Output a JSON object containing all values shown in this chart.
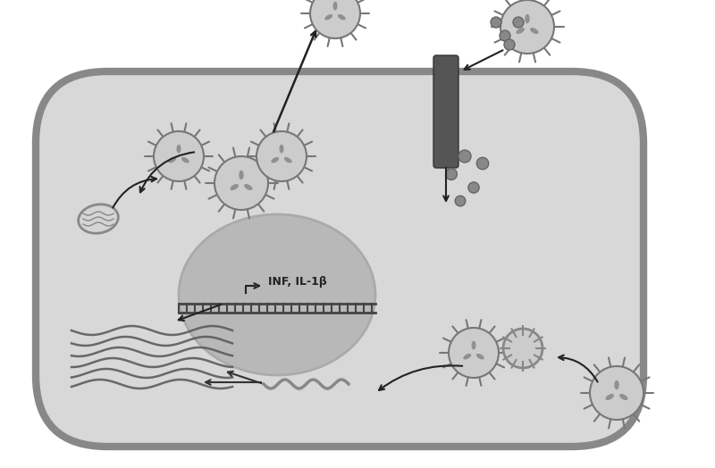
{
  "bg_color": "#f0f0f0",
  "cell_color": "#d8d8d8",
  "cell_border_color": "#888888",
  "nucleus_color": "#c0c0c0",
  "nucleus_border_color": "#aaaaaa",
  "dark_gray": "#555555",
  "medium_gray": "#888888",
  "light_gray": "#cccccc",
  "text_color": "#222222",
  "inf_label": "INF, IL-1β",
  "white": "#ffffff"
}
